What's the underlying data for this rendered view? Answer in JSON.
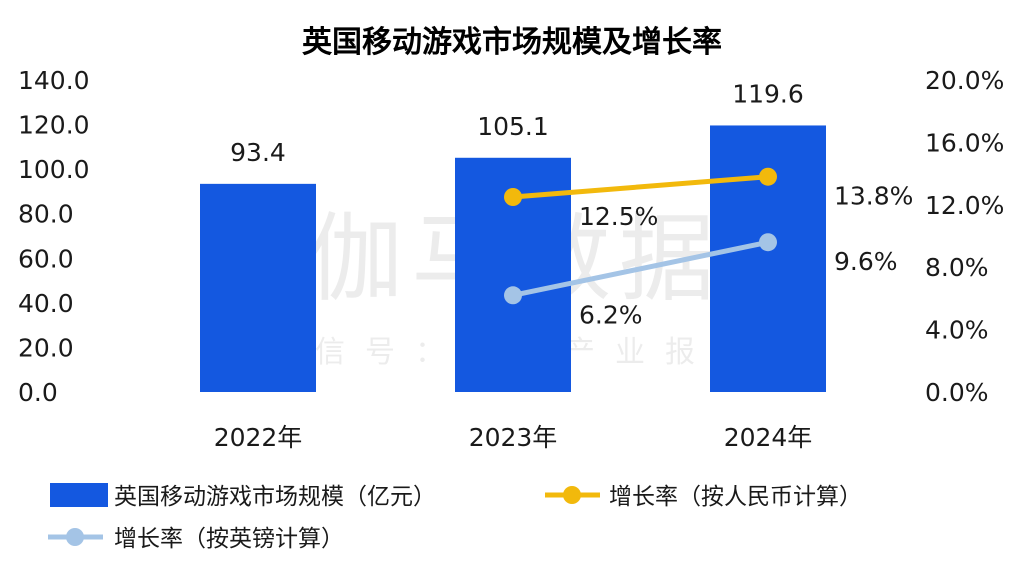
{
  "chart_data": {
    "type": "bar+line",
    "title": "英国移动游戏市场规模及增长率",
    "categories": [
      "2022年",
      "2023年",
      "2024年"
    ],
    "left_axis": {
      "ylim": [
        0,
        140
      ],
      "ticks": [
        "0.0",
        "20.0",
        "40.0",
        "60.0",
        "80.0",
        "100.0",
        "120.0",
        "140.0"
      ]
    },
    "right_axis": {
      "ylim": [
        0,
        20
      ],
      "ticks": [
        "0.0%",
        "4.0%",
        "8.0%",
        "12.0%",
        "16.0%",
        "20.0%"
      ]
    },
    "series": [
      {
        "name": "英国移动游戏市场规模（亿元）",
        "kind": "bar",
        "axis": "left",
        "color": "#1458e0",
        "values": [
          93.4,
          105.1,
          119.6
        ],
        "labels": [
          "93.4",
          "105.1",
          "119.6"
        ]
      },
      {
        "name": "增长率（按人民币计算）",
        "kind": "line",
        "axis": "right",
        "color": "#f2b90c",
        "values": [
          null,
          12.5,
          13.8
        ],
        "labels": [
          "",
          "12.5%",
          "13.8%"
        ]
      },
      {
        "name": "增长率（按英镑计算）",
        "kind": "line",
        "axis": "right",
        "color": "#a4c4e6",
        "values": [
          null,
          6.2,
          9.6
        ],
        "labels": [
          "",
          "6.2%",
          "9.6%"
        ]
      }
    ],
    "grid": false,
    "legend": "bottom"
  },
  "watermark": {
    "main": "伽马数据",
    "sub": "微信号：游戏产业报告"
  }
}
